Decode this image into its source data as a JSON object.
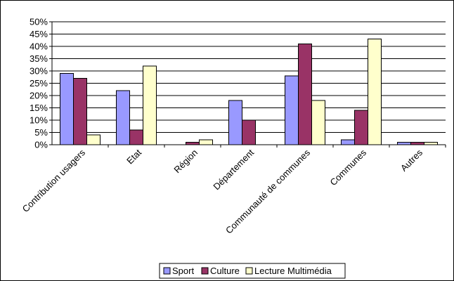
{
  "chart_data": {
    "type": "bar",
    "title": "",
    "xlabel": "",
    "ylabel": "",
    "categories": [
      "Contribution usagers",
      "Etat",
      "Région",
      "Département",
      "Communauté de communes",
      "Communes",
      "Autres"
    ],
    "series": [
      {
        "name": "Sport",
        "color": "#9999FF",
        "values": [
          0.29,
          0.22,
          0.0,
          0.18,
          0.28,
          0.02,
          0.01
        ]
      },
      {
        "name": "Culture",
        "color": "#993366",
        "values": [
          0.27,
          0.06,
          0.01,
          0.1,
          0.41,
          0.14,
          0.01
        ]
      },
      {
        "name": "Lecture Multimédia",
        "color": "#FFFFCC",
        "values": [
          0.04,
          0.32,
          0.02,
          0.0,
          0.18,
          0.43,
          0.01
        ]
      }
    ],
    "yticks": [
      "0%",
      "5%",
      "10%",
      "15%",
      "20%",
      "25%",
      "30%",
      "35%",
      "40%",
      "45%",
      "50%"
    ],
    "ylim": [
      0,
      0.5
    ],
    "grid": true,
    "legend_position": "bottom"
  }
}
